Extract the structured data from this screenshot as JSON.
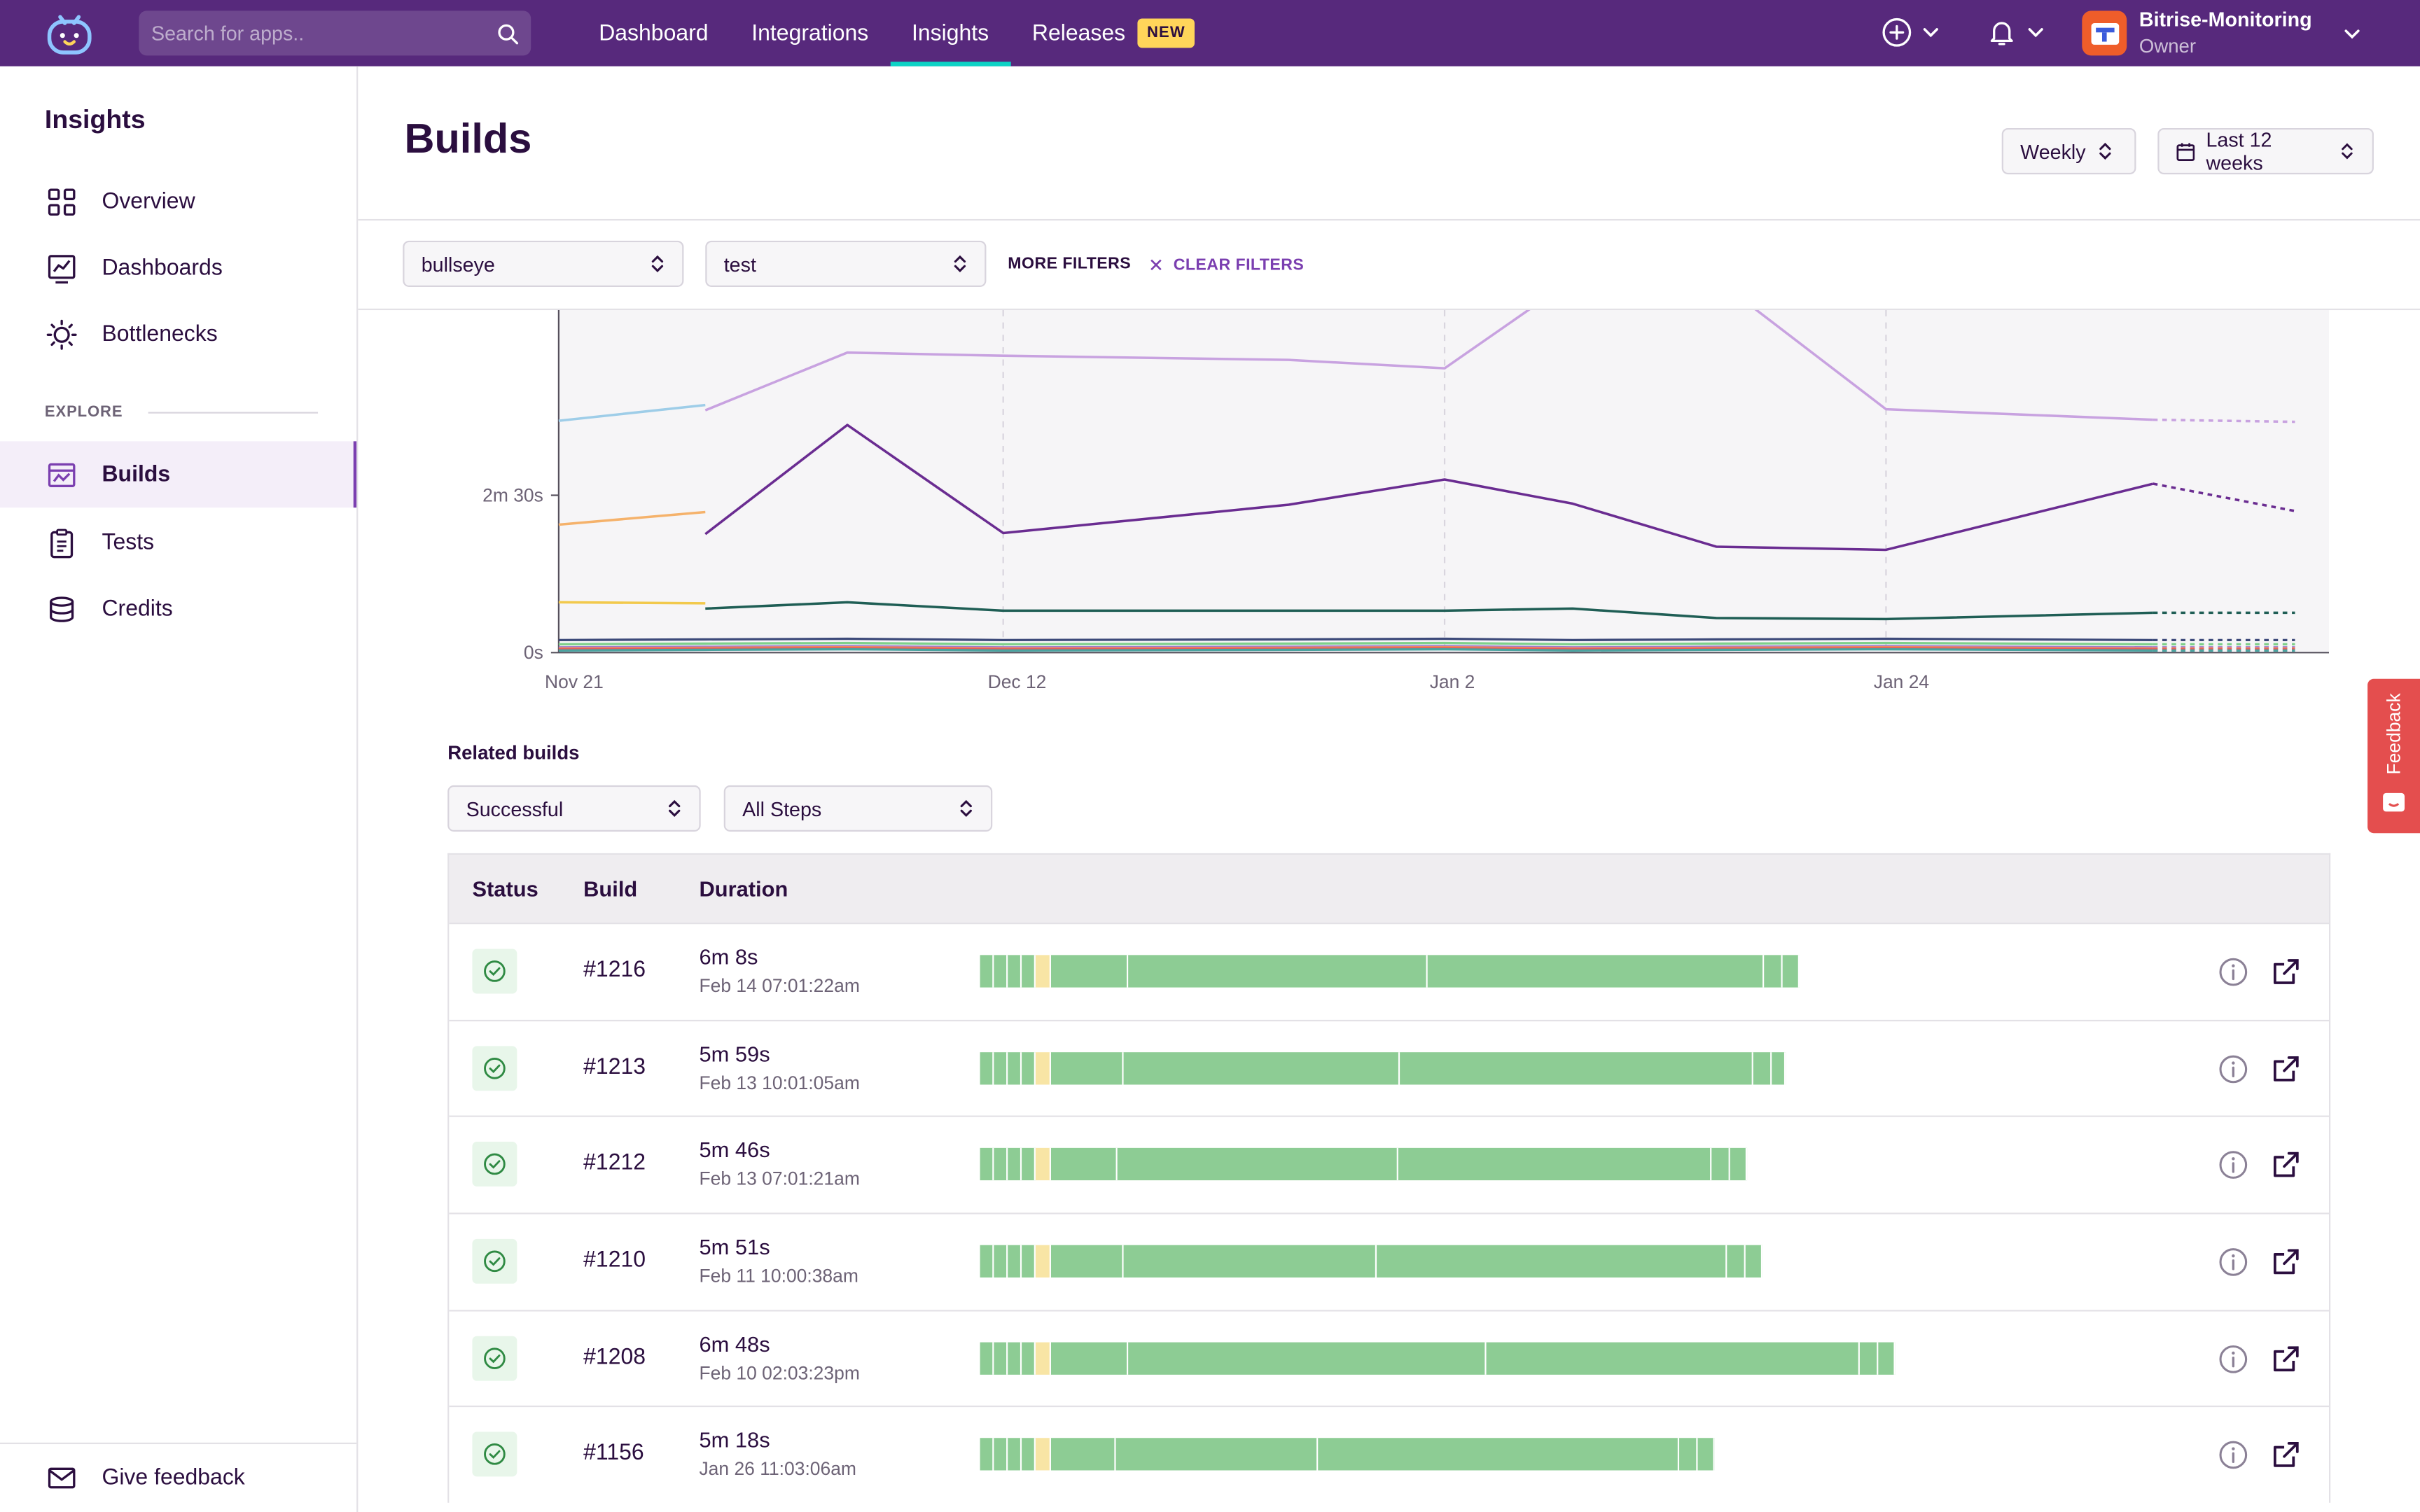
{
  "topbar": {
    "search_placeholder": "Search for apps..",
    "nav": [
      {
        "label": "Dashboard",
        "active": false
      },
      {
        "label": "Integrations",
        "active": false
      },
      {
        "label": "Insights",
        "active": true
      },
      {
        "label": "Releases",
        "active": false,
        "badge": "NEW"
      }
    ],
    "workspace_name": "Bitrise-Monitoring",
    "workspace_role": "Owner",
    "colors": {
      "bar": "#57297c",
      "active_underline": "#0dd3c5",
      "badge": "#ffd55a"
    }
  },
  "sidebar": {
    "title": "Insights",
    "items": [
      {
        "label": "Overview",
        "icon": "grid-icon"
      },
      {
        "label": "Dashboards",
        "icon": "chart-icon"
      },
      {
        "label": "Bottlenecks",
        "icon": "bulb-icon"
      }
    ],
    "explore_label": "EXPLORE",
    "explore_items": [
      {
        "label": "Builds",
        "icon": "builds-icon",
        "active": true
      },
      {
        "label": "Tests",
        "icon": "clipboard-icon"
      },
      {
        "label": "Credits",
        "icon": "coins-icon"
      }
    ],
    "footer": {
      "label": "Give feedback",
      "icon": "mail-icon"
    }
  },
  "header": {
    "title": "Builds",
    "granularity": "Weekly",
    "range": "Last 12 weeks"
  },
  "filters": {
    "app": "bullseye",
    "workflow": "test",
    "more_label": "MORE FILTERS",
    "clear_label": "CLEAR FILTERS"
  },
  "chart_data": {
    "type": "line",
    "x_labels": [
      "Nov 21",
      "Dec 12",
      "Jan 2",
      "Jan 24"
    ],
    "y_ticks": [
      "0s",
      "2m 30s"
    ],
    "series": [
      {
        "color": "#c8a2e0",
        "values": [
          null,
          231,
          286,
          283,
          279,
          271,
          365,
          360,
          232,
          222,
          220
        ]
      },
      {
        "color": "#6a2c91",
        "values": [
          null,
          113,
          217,
          114,
          141,
          165,
          142,
          101,
          98,
          161,
          135
        ]
      },
      {
        "color": "#1f5e55",
        "values": [
          null,
          42,
          48,
          40,
          40,
          40,
          42,
          33,
          32,
          38,
          38
        ]
      },
      {
        "color": "#9ecde8",
        "values": [
          221,
          236,
          null,
          null,
          null,
          null,
          null,
          null,
          null,
          null,
          null
        ]
      },
      {
        "color": "#f5b26b",
        "values": [
          122,
          134,
          null,
          null,
          null,
          null,
          null,
          null,
          null,
          null,
          null
        ]
      },
      {
        "color": "#f2c94c",
        "values": [
          48,
          47,
          null,
          null,
          null,
          null,
          null,
          null,
          null,
          null,
          null
        ]
      }
    ]
  },
  "related": {
    "title": "Related builds",
    "status_filter": "Successful",
    "steps_filter": "All Steps",
    "columns": [
      "Status",
      "Build",
      "Duration"
    ],
    "rows": [
      {
        "build": "#1216",
        "duration": "6m 8s",
        "date": "Feb 14 07:01:22am"
      },
      {
        "build": "#1213",
        "duration": "5m 59s",
        "date": "Feb 13 10:01:05am"
      },
      {
        "build": "#1212",
        "duration": "5m 46s",
        "date": "Feb 13 07:01:21am"
      },
      {
        "build": "#1210",
        "duration": "5m 51s",
        "date": "Feb 11 10:00:38am"
      },
      {
        "build": "#1208",
        "duration": "6m 48s",
        "date": "Feb 10 02:03:23pm"
      },
      {
        "build": "#1156",
        "duration": "5m 18s",
        "date": "Jan 26 11:03:06am"
      }
    ]
  },
  "feedback_tab": {
    "label": "Feedback",
    "color": "#e44e4e"
  }
}
